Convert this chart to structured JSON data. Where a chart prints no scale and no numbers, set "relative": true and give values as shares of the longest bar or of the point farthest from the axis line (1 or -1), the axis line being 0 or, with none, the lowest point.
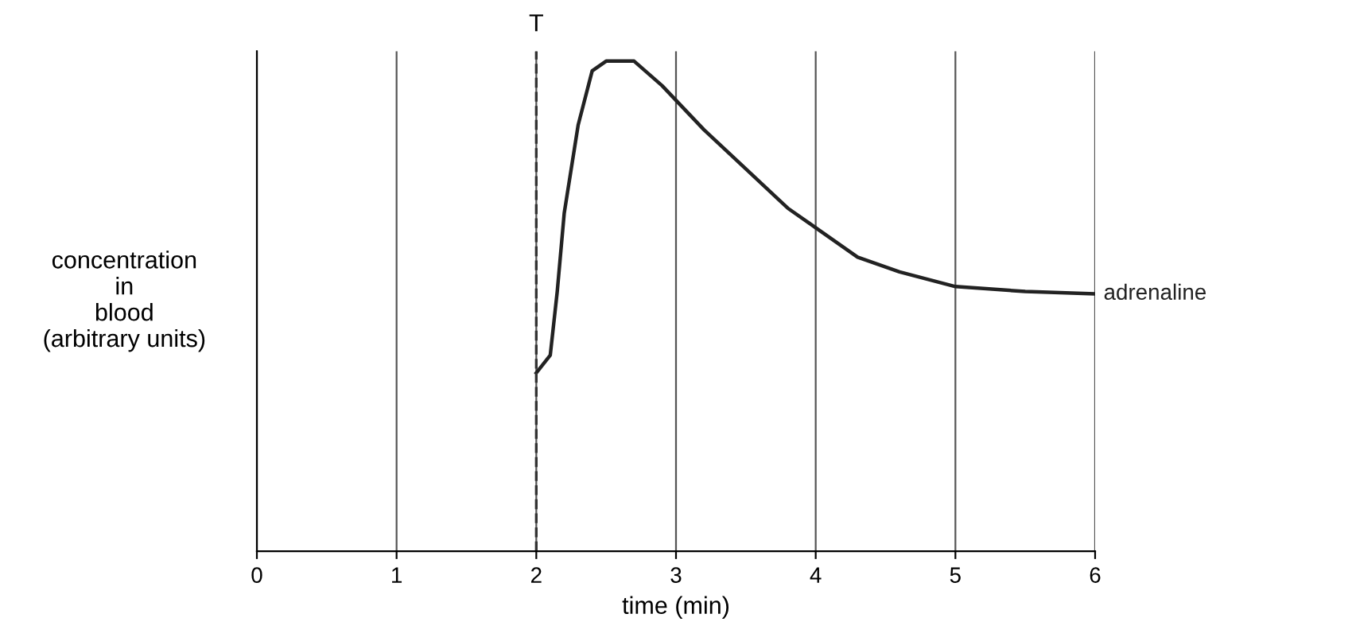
{
  "chart_data": {
    "type": "line",
    "xlabel": "time (min)",
    "ylabel": "concentration\nin\nblood\n(arbitrary units)",
    "relative": true,
    "xlim": [
      0,
      6
    ],
    "xticks": [
      0,
      1,
      2,
      3,
      4,
      5,
      6
    ],
    "grid": "x",
    "marker": "none",
    "line_style": "solid",
    "ref_lines": [
      {
        "axis": "x",
        "value": 2,
        "label": "T",
        "line_style": "dashed",
        "color": "#333333"
      }
    ],
    "series": [
      {
        "name": "adrenaline",
        "color": "#222222",
        "x": [
          2.0,
          2.1,
          2.15,
          2.2,
          2.3,
          2.4,
          2.5,
          2.7,
          2.9,
          3.2,
          3.5,
          3.8,
          4.0,
          4.3,
          4.6,
          5.0,
          5.5,
          6.0
        ],
        "values": [
          0.364,
          0.4,
          0.53,
          0.69,
          0.87,
          0.98,
          1.0,
          1.0,
          0.95,
          0.86,
          0.78,
          0.7,
          0.66,
          0.6,
          0.57,
          0.54,
          0.53,
          0.525
        ]
      }
    ]
  }
}
